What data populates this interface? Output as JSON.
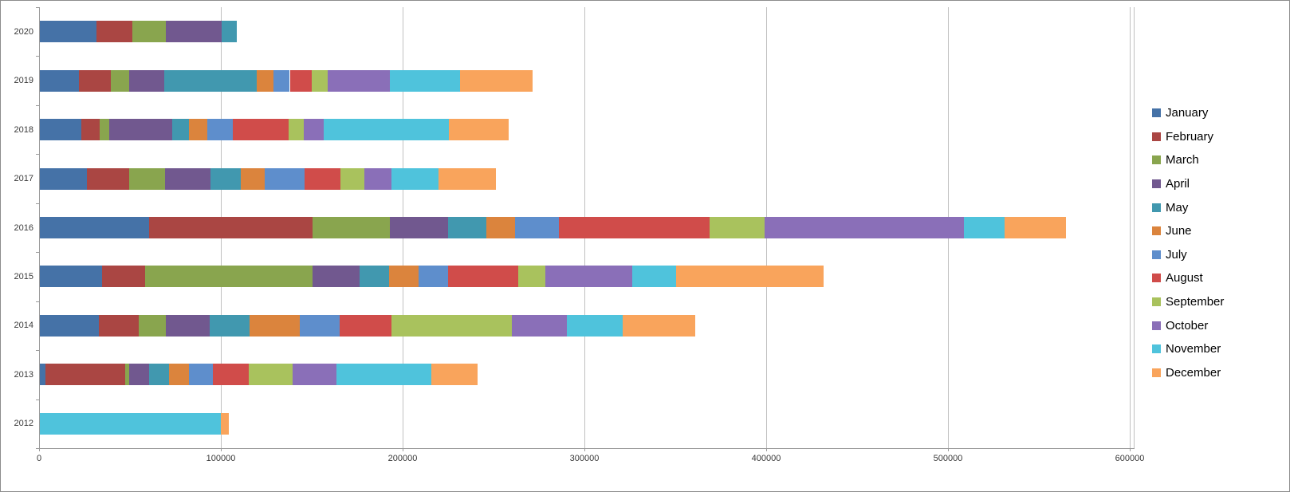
{
  "chart_data": {
    "type": "bar",
    "orientation": "horizontal",
    "stacked": true,
    "title": "",
    "xlabel": "",
    "ylabel": "",
    "categories": [
      "2020",
      "2019",
      "2018",
      "2017",
      "2016",
      "2015",
      "2014",
      "2013",
      "2012"
    ],
    "series": [
      {
        "name": "January",
        "color": "#4572A7",
        "values": [
          31000,
          21500,
          23000,
          26000,
          60000,
          34000,
          32500,
          3000,
          0
        ]
      },
      {
        "name": "February",
        "color": "#AA4643",
        "values": [
          20000,
          17500,
          10000,
          23000,
          90000,
          24000,
          22000,
          44000,
          0
        ]
      },
      {
        "name": "March",
        "color": "#89A54E",
        "values": [
          18500,
          10000,
          5000,
          20000,
          42500,
          92000,
          15000,
          2000,
          0
        ]
      },
      {
        "name": "April",
        "color": "#71588F",
        "values": [
          30500,
          19500,
          35000,
          25000,
          32000,
          26000,
          24000,
          11000,
          0
        ]
      },
      {
        "name": "May",
        "color": "#4198AF",
        "values": [
          8500,
          51000,
          9000,
          16500,
          21000,
          16000,
          22000,
          11000,
          0
        ]
      },
      {
        "name": "June",
        "color": "#DB843D",
        "values": [
          0,
          9000,
          10000,
          13000,
          16000,
          16500,
          27500,
          11000,
          0
        ]
      },
      {
        "name": "July",
        "color": "#5E8ECC",
        "values": [
          0,
          9000,
          14000,
          22000,
          24000,
          16000,
          22000,
          13000,
          0
        ]
      },
      {
        "name": "August",
        "color": "#D04C4A",
        "values": [
          0,
          12000,
          31000,
          20000,
          83000,
          38500,
          28500,
          20000,
          0
        ]
      },
      {
        "name": "September",
        "color": "#A9C25D",
        "values": [
          0,
          9000,
          8000,
          13000,
          30000,
          15000,
          66000,
          24000,
          0
        ]
      },
      {
        "name": "October",
        "color": "#8A6FB8",
        "values": [
          0,
          34000,
          11000,
          15000,
          110000,
          48000,
          30500,
          24000,
          0
        ]
      },
      {
        "name": "November",
        "color": "#4FC3DC",
        "values": [
          0,
          38500,
          69000,
          26000,
          22000,
          24000,
          30500,
          52500,
          99500
        ]
      },
      {
        "name": "December",
        "color": "#F9A45C",
        "values": [
          0,
          40000,
          33000,
          31500,
          34000,
          81000,
          40000,
          25500,
          4500
        ]
      }
    ],
    "x_ticks": [
      0,
      100000,
      200000,
      300000,
      400000,
      500000,
      600000
    ],
    "x_tick_labels": [
      "0",
      "100000",
      "200000",
      "300000",
      "400000",
      "500000",
      "600000"
    ],
    "xlim": [
      0,
      600000
    ],
    "grid": "vertical",
    "legend_position": "right"
  }
}
